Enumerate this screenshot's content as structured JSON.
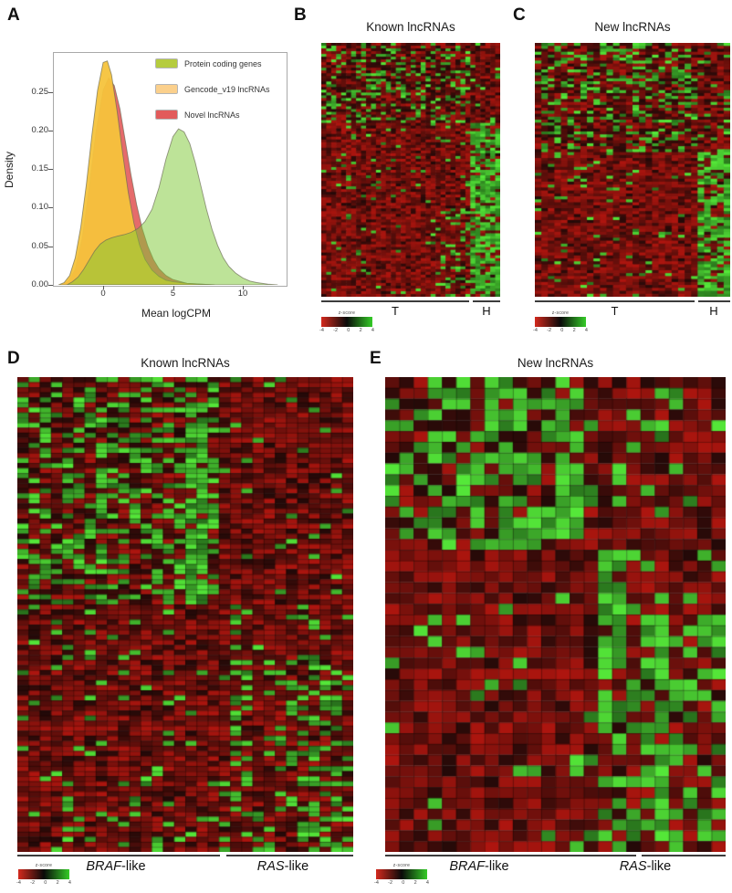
{
  "panel_a": {
    "label": "A",
    "ylabel": "Density",
    "xlabel": "Mean logCPM",
    "y_ticks": [
      "0.00",
      "0.05",
      "0.10",
      "0.15",
      "0.20",
      "0.25"
    ],
    "x_ticks": [
      "0",
      "5",
      "10"
    ],
    "legend": [
      {
        "label": "Protein coding genes",
        "color": "#b5cc3e"
      },
      {
        "label": "Gencode_v19 lncRNAs",
        "color": "#fbd08c"
      },
      {
        "label": "Novel lncRNAs",
        "color": "#e25b5b"
      }
    ]
  },
  "panel_b": {
    "label": "B",
    "title": "Known lncRNAs",
    "group_left": "T",
    "group_right": "H"
  },
  "panel_c": {
    "label": "C",
    "title": "New lncRNAs",
    "group_left": "T",
    "group_right": "H"
  },
  "panel_d": {
    "label": "D",
    "title": "Known lncRNAs",
    "group_left_italic": "BRAF",
    "group_left_rest": "-like",
    "group_right_italic": "RAS",
    "group_right_rest": "-like"
  },
  "panel_e": {
    "label": "E",
    "title": "New lncRNAs",
    "group_left_italic": "BRAF",
    "group_left_rest": "-like",
    "group_right_italic": "RAS",
    "group_right_rest": "-like"
  },
  "chart_data": [
    {
      "type": "area",
      "title": "Density of mean expression",
      "xlabel": "Mean logCPM",
      "ylabel": "Density",
      "xlim": [
        -3.5,
        13.1
      ],
      "ylim": [
        0,
        0.3
      ],
      "x_ticks": [
        0,
        5,
        10
      ],
      "y_ticks": [
        0,
        0.05,
        0.1,
        0.15,
        0.2,
        0.25
      ],
      "grid": false,
      "legend_position": "top-right",
      "series": [
        {
          "name": "Novel lncRNAs",
          "fill": "#e25b5b",
          "opacity": 0.9,
          "points": [
            [
              -3,
              0
            ],
            [
              -2.5,
              0.005
            ],
            [
              -2,
              0.02
            ],
            [
              -1.5,
              0.06
            ],
            [
              -1,
              0.125
            ],
            [
              -0.5,
              0.2
            ],
            [
              0,
              0.252
            ],
            [
              0.4,
              0.268
            ],
            [
              0.8,
              0.258
            ],
            [
              1.2,
              0.228
            ],
            [
              1.6,
              0.185
            ],
            [
              2,
              0.142
            ],
            [
              2.4,
              0.104
            ],
            [
              2.8,
              0.073
            ],
            [
              3.2,
              0.05
            ],
            [
              3.6,
              0.033
            ],
            [
              4,
              0.021
            ],
            [
              4.5,
              0.012
            ],
            [
              5,
              0.007
            ],
            [
              6,
              0.002
            ],
            [
              7,
              0.001
            ],
            [
              8,
              0
            ]
          ]
        },
        {
          "name": "Gencode_v19 lncRNAs",
          "fill": "#f6c33c",
          "opacity": 0.95,
          "points": [
            [
              -3.2,
              0
            ],
            [
              -2.8,
              0.003
            ],
            [
              -2.4,
              0.012
            ],
            [
              -2,
              0.035
            ],
            [
              -1.6,
              0.075
            ],
            [
              -1.2,
              0.13
            ],
            [
              -0.8,
              0.195
            ],
            [
              -0.4,
              0.252
            ],
            [
              0,
              0.288
            ],
            [
              0.3,
              0.29
            ],
            [
              0.6,
              0.272
            ],
            [
              1,
              0.225
            ],
            [
              1.4,
              0.17
            ],
            [
              1.8,
              0.12
            ],
            [
              2.2,
              0.08
            ],
            [
              2.6,
              0.052
            ],
            [
              3,
              0.033
            ],
            [
              3.5,
              0.019
            ],
            [
              4,
              0.011
            ],
            [
              4.5,
              0.006
            ],
            [
              5,
              0.004
            ],
            [
              6,
              0.002
            ],
            [
              7,
              0.001
            ],
            [
              8,
              0
            ]
          ]
        },
        {
          "name": "Protein coding genes",
          "fill": "#7cc832",
          "opacity": 0.5,
          "points": [
            [
              -2.6,
              0
            ],
            [
              -2.2,
              0.004
            ],
            [
              -1.8,
              0.01
            ],
            [
              -1.4,
              0.02
            ],
            [
              -1,
              0.032
            ],
            [
              -0.6,
              0.044
            ],
            [
              -0.2,
              0.053
            ],
            [
              0.2,
              0.058
            ],
            [
              0.6,
              0.061
            ],
            [
              1,
              0.063
            ],
            [
              1.5,
              0.065
            ],
            [
              2,
              0.068
            ],
            [
              2.5,
              0.073
            ],
            [
              3,
              0.082
            ],
            [
              3.5,
              0.098
            ],
            [
              4,
              0.126
            ],
            [
              4.5,
              0.163
            ],
            [
              5,
              0.192
            ],
            [
              5.4,
              0.202
            ],
            [
              5.8,
              0.198
            ],
            [
              6.2,
              0.183
            ],
            [
              6.6,
              0.158
            ],
            [
              7,
              0.128
            ],
            [
              7.4,
              0.098
            ],
            [
              7.8,
              0.072
            ],
            [
              8.2,
              0.051
            ],
            [
              8.6,
              0.035
            ],
            [
              9,
              0.024
            ],
            [
              9.5,
              0.015
            ],
            [
              10,
              0.009
            ],
            [
              10.5,
              0.005
            ],
            [
              11,
              0.003
            ],
            [
              11.8,
              0.001
            ],
            [
              12.5,
              0
            ]
          ]
        }
      ]
    },
    {
      "type": "heatmap",
      "id": "B",
      "title": "Known lncRNAs",
      "rows": 92,
      "cols": 36,
      "col_groups": [
        {
          "label": "T",
          "cols": [
            0,
            29
          ]
        },
        {
          "label": "H",
          "cols": [
            30,
            35
          ]
        }
      ],
      "colorscale": {
        "label": "z-score",
        "ticks": [
          "-4",
          "-2",
          "0",
          "2",
          "4"
        ],
        "colors": [
          "#d42a1e",
          "#0a0a0a",
          "#35cc28"
        ]
      },
      "seed": 7,
      "grid": false,
      "base": {
        "green_prob": 0.04,
        "black_prob": 0.15
      },
      "regions": [
        {
          "rows": [
            0,
            28
          ],
          "cols": [
            0,
            29
          ],
          "green_prob": 0.28,
          "black_prob": 0.35
        },
        {
          "rows": [
            0,
            28
          ],
          "cols": [
            30,
            35
          ],
          "green_prob": 0.08,
          "black_prob": 0.2
        },
        {
          "rows": [
            29,
            91
          ],
          "cols": [
            0,
            29
          ],
          "green_prob": 0.05,
          "black_prob": 0.12
        },
        {
          "rows": [
            60,
            91
          ],
          "cols": [
            24,
            29
          ],
          "green_prob": 0.25,
          "black_prob": 0.15
        },
        {
          "rows": [
            29,
            91
          ],
          "cols": [
            30,
            35
          ],
          "green_prob": 0.72,
          "black_prob": 0.1
        }
      ]
    },
    {
      "type": "heatmap",
      "id": "C",
      "title": "New lncRNAs",
      "rows": 86,
      "cols": 30,
      "col_groups": [
        {
          "label": "T",
          "cols": [
            0,
            24
          ]
        },
        {
          "label": "H",
          "cols": [
            25,
            29
          ]
        }
      ],
      "colorscale": {
        "label": "z-score",
        "ticks": [
          "-4",
          "-2",
          "0",
          "2",
          "4"
        ],
        "colors": [
          "#d42a1e",
          "#0a0a0a",
          "#35cc28"
        ]
      },
      "seed": 13,
      "grid": false,
      "base": {
        "green_prob": 0.05,
        "black_prob": 0.15
      },
      "regions": [
        {
          "rows": [
            0,
            36
          ],
          "cols": [
            0,
            24
          ],
          "green_prob": 0.3,
          "black_prob": 0.32
        },
        {
          "rows": [
            0,
            36
          ],
          "cols": [
            25,
            29
          ],
          "green_prob": 0.12,
          "black_prob": 0.2
        },
        {
          "rows": [
            37,
            85
          ],
          "cols": [
            0,
            24
          ],
          "green_prob": 0.05,
          "black_prob": 0.12
        },
        {
          "rows": [
            37,
            85
          ],
          "cols": [
            25,
            29
          ],
          "green_prob": 0.68,
          "black_prob": 0.1
        }
      ]
    },
    {
      "type": "heatmap",
      "id": "D",
      "title": "Known lncRNAs",
      "rows": 94,
      "cols": 30,
      "col_groups": [
        {
          "label": "BRAF-like",
          "cols": [
            0,
            17
          ]
        },
        {
          "label": "RAS-like",
          "cols": [
            18,
            29
          ]
        }
      ],
      "colorscale": {
        "label": "z-score",
        "ticks": [
          "-4",
          "-2",
          "0",
          "2",
          "4"
        ],
        "colors": [
          "#d42a1e",
          "#0a0a0a",
          "#35cc28"
        ]
      },
      "seed": 21,
      "grid": true,
      "base": {
        "green_prob": 0.05,
        "black_prob": 0.15
      },
      "regions": [
        {
          "rows": [
            0,
            44
          ],
          "cols": [
            0,
            17
          ],
          "green_prob": 0.4,
          "black_prob": 0.3
        },
        {
          "rows": [
            0,
            44
          ],
          "cols": [
            18,
            29
          ],
          "green_prob": 0.05,
          "black_prob": 0.18
        },
        {
          "rows": [
            8,
            52
          ],
          "cols": [
            15,
            16
          ],
          "green_prob": 0.8,
          "black_prob": 0.1
        },
        {
          "rows": [
            45,
            93
          ],
          "cols": [
            0,
            17
          ],
          "green_prob": 0.09,
          "black_prob": 0.15
        },
        {
          "rows": [
            45,
            93
          ],
          "cols": [
            18,
            29
          ],
          "green_prob": 0.1,
          "black_prob": 0.15
        },
        {
          "rows": [
            48,
            75
          ],
          "cols": [
            19,
            20
          ],
          "green_prob": 0.5,
          "black_prob": 0.15
        },
        {
          "rows": [
            55,
            93
          ],
          "cols": [
            23,
            29
          ],
          "green_prob": 0.42,
          "black_prob": 0.15
        },
        {
          "rows": [
            76,
            93
          ],
          "cols": [
            18,
            22
          ],
          "green_prob": 0.2,
          "black_prob": 0.15
        }
      ]
    },
    {
      "type": "heatmap",
      "id": "E",
      "title": "New lncRNAs",
      "rows": 44,
      "cols": 24,
      "col_groups": [
        {
          "label": "BRAF-like",
          "cols": [
            0,
            14
          ]
        },
        {
          "label": "RAS-like",
          "cols": [
            15,
            23
          ]
        }
      ],
      "colorscale": {
        "label": "z-score",
        "ticks": [
          "-4",
          "-2",
          "0",
          "2",
          "4"
        ],
        "colors": [
          "#d42a1e",
          "#0a0a0a",
          "#35cc28"
        ]
      },
      "seed": 5,
      "grid": true,
      "base": {
        "green_prob": 0.05,
        "black_prob": 0.15
      },
      "regions": [
        {
          "rows": [
            0,
            15
          ],
          "cols": [
            0,
            14
          ],
          "green_prob": 0.42,
          "black_prob": 0.33
        },
        {
          "rows": [
            0,
            15
          ],
          "cols": [
            8,
            12
          ],
          "green_prob": 0.55,
          "black_prob": 0.28
        },
        {
          "rows": [
            0,
            15
          ],
          "cols": [
            15,
            23
          ],
          "green_prob": 0.06,
          "black_prob": 0.18
        },
        {
          "rows": [
            16,
            43
          ],
          "cols": [
            0,
            14
          ],
          "green_prob": 0.06,
          "black_prob": 0.15
        },
        {
          "rows": [
            16,
            43
          ],
          "cols": [
            15,
            23
          ],
          "green_prob": 0.13,
          "black_prob": 0.15
        },
        {
          "rows": [
            16,
            38
          ],
          "cols": [
            15,
            16
          ],
          "green_prob": 0.75,
          "black_prob": 0.1
        },
        {
          "rows": [
            22,
            43
          ],
          "cols": [
            18,
            23
          ],
          "green_prob": 0.45,
          "black_prob": 0.2
        },
        {
          "rows": [
            36,
            43
          ],
          "cols": [
            15,
            23
          ],
          "green_prob": 0.4,
          "black_prob": 0.15
        }
      ]
    }
  ]
}
